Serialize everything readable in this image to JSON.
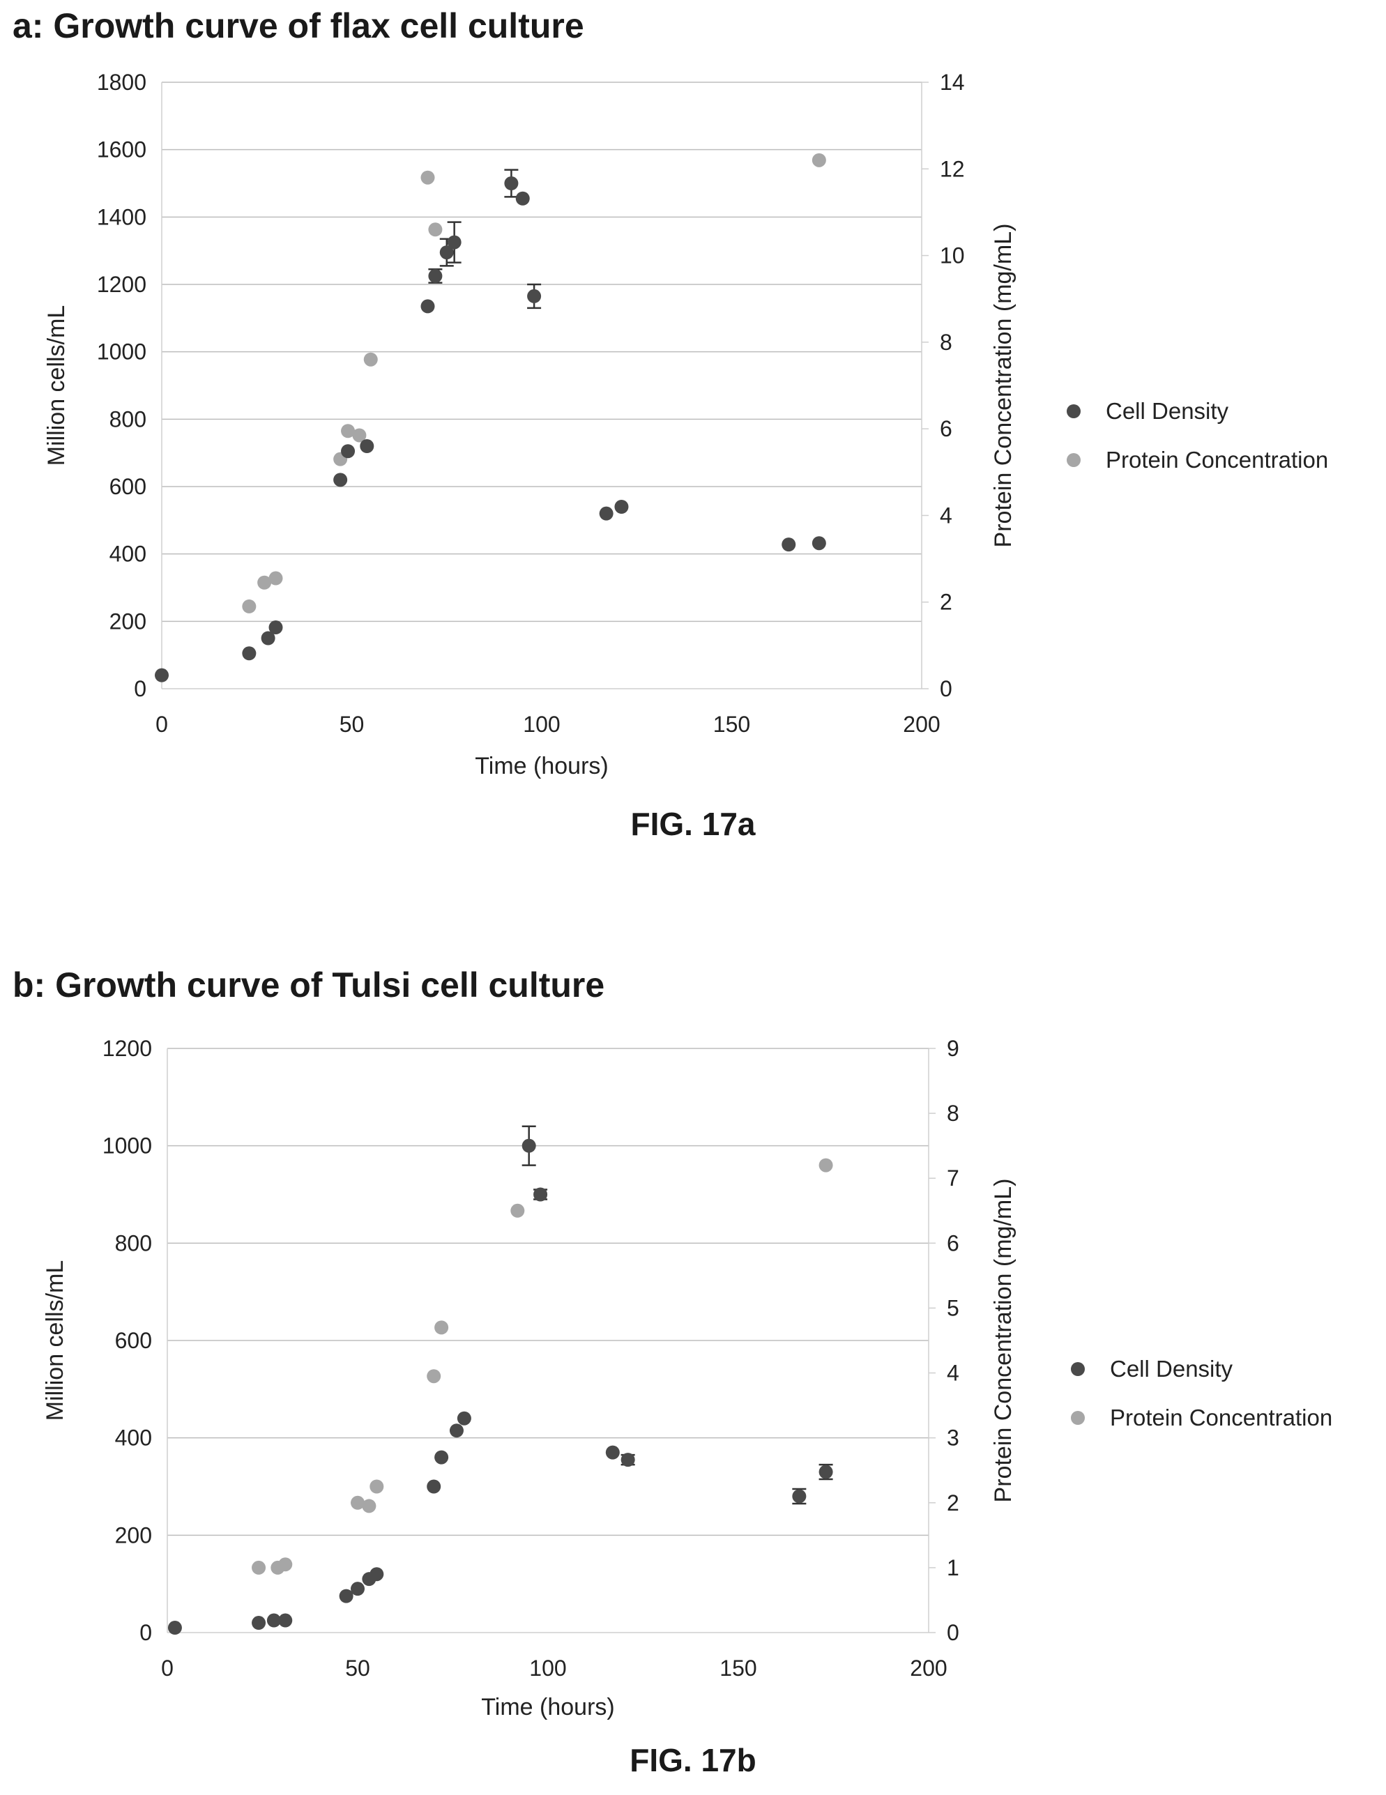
{
  "colors": {
    "cell_density": "#4a4a4a",
    "protein_concentration": "#a6a6a6",
    "grid": "#bdbdbd",
    "axis": "#cfcfcf",
    "error_bar": "#333333"
  },
  "chart_data": [
    {
      "panel_title": "a: Growth curve of flax cell culture",
      "figure_label": "FIG. 17a",
      "type": "scatter",
      "xlabel": "Time (hours)",
      "ylabel": "Million cells/mL",
      "y2label": "Protein Concentration (mg/mL)",
      "xlim": [
        0,
        200
      ],
      "ylim": [
        0,
        1800
      ],
      "y2lim": [
        0,
        14
      ],
      "x_ticks": [
        "0",
        "50",
        "100",
        "150",
        "200"
      ],
      "y_ticks": [
        "0",
        "200",
        "400",
        "600",
        "800",
        "1000",
        "1200",
        "1400",
        "1600",
        "1800"
      ],
      "y2_ticks": [
        "0",
        "2",
        "4",
        "6",
        "8",
        "10",
        "12",
        "14"
      ],
      "grid": "horizontal",
      "legend": "right",
      "series": [
        {
          "name": "Cell Density",
          "axis": "left",
          "points": [
            {
              "x": 0,
              "y": 40
            },
            {
              "x": 23,
              "y": 105
            },
            {
              "x": 28,
              "y": 150
            },
            {
              "x": 30,
              "y": 182
            },
            {
              "x": 47,
              "y": 620
            },
            {
              "x": 49,
              "y": 705
            },
            {
              "x": 54,
              "y": 720
            },
            {
              "x": 70,
              "y": 1135
            },
            {
              "x": 72,
              "y": 1225,
              "err": 20
            },
            {
              "x": 75,
              "y": 1295,
              "err": 40
            },
            {
              "x": 77,
              "y": 1325,
              "err": 60
            },
            {
              "x": 92,
              "y": 1500,
              "err": 40
            },
            {
              "x": 95,
              "y": 1455
            },
            {
              "x": 98,
              "y": 1165,
              "err": 35
            },
            {
              "x": 117,
              "y": 520
            },
            {
              "x": 121,
              "y": 540
            },
            {
              "x": 165,
              "y": 428
            },
            {
              "x": 173,
              "y": 432
            }
          ]
        },
        {
          "name": "Protein Concentration",
          "axis": "right",
          "points": [
            {
              "x": 23,
              "y": 1.9
            },
            {
              "x": 27,
              "y": 2.45
            },
            {
              "x": 30,
              "y": 2.55
            },
            {
              "x": 47,
              "y": 5.3
            },
            {
              "x": 49,
              "y": 5.95
            },
            {
              "x": 52,
              "y": 5.85
            },
            {
              "x": 55,
              "y": 7.6
            },
            {
              "x": 70,
              "y": 11.8
            },
            {
              "x": 72,
              "y": 10.6
            },
            {
              "x": 173,
              "y": 12.2
            }
          ]
        }
      ]
    },
    {
      "panel_title": "b: Growth curve of Tulsi cell culture",
      "figure_label": "FIG. 17b",
      "type": "scatter",
      "xlabel": "Time (hours)",
      "ylabel": "Million cells/mL",
      "y2label": "Protein Concentration (mg/mL)",
      "xlim": [
        0,
        200
      ],
      "ylim": [
        0,
        1200
      ],
      "y2lim": [
        0,
        9
      ],
      "x_ticks": [
        "0",
        "50",
        "100",
        "150",
        "200"
      ],
      "y_ticks": [
        "0",
        "200",
        "400",
        "600",
        "800",
        "1000",
        "1200"
      ],
      "y2_ticks": [
        "0",
        "1",
        "2",
        "3",
        "4",
        "5",
        "6",
        "7",
        "8",
        "9"
      ],
      "grid": "horizontal",
      "legend": "right",
      "series": [
        {
          "name": "Cell Density",
          "axis": "left",
          "points": [
            {
              "x": 2,
              "y": 10
            },
            {
              "x": 24,
              "y": 20
            },
            {
              "x": 28,
              "y": 25
            },
            {
              "x": 31,
              "y": 25
            },
            {
              "x": 47,
              "y": 75
            },
            {
              "x": 50,
              "y": 90
            },
            {
              "x": 53,
              "y": 110
            },
            {
              "x": 55,
              "y": 120
            },
            {
              "x": 70,
              "y": 300
            },
            {
              "x": 72,
              "y": 360
            },
            {
              "x": 76,
              "y": 415
            },
            {
              "x": 78,
              "y": 440
            },
            {
              "x": 95,
              "y": 1000,
              "err": 40
            },
            {
              "x": 98,
              "y": 900,
              "err": 10
            },
            {
              "x": 117,
              "y": 370
            },
            {
              "x": 121,
              "y": 355,
              "err": 10
            },
            {
              "x": 166,
              "y": 280,
              "err": 15
            },
            {
              "x": 173,
              "y": 330,
              "err": 15
            }
          ]
        },
        {
          "name": "Protein Concentration",
          "axis": "right",
          "points": [
            {
              "x": 24,
              "y": 1.0
            },
            {
              "x": 29,
              "y": 1.0
            },
            {
              "x": 31,
              "y": 1.05
            },
            {
              "x": 50,
              "y": 2.0
            },
            {
              "x": 53,
              "y": 1.95
            },
            {
              "x": 55,
              "y": 2.25
            },
            {
              "x": 70,
              "y": 3.95
            },
            {
              "x": 72,
              "y": 4.7
            },
            {
              "x": 92,
              "y": 6.5
            },
            {
              "x": 173,
              "y": 7.2
            }
          ]
        }
      ]
    }
  ]
}
